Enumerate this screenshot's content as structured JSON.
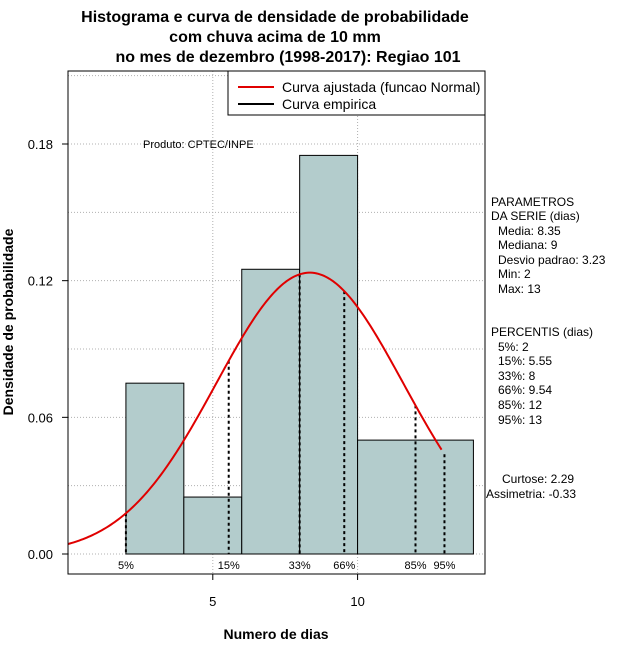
{
  "chart_data": {
    "type": "histogram",
    "title_lines": [
      "Histograma e curva de densidade de probabilidade",
      "com chuva acima de 10 mm",
      "no mes de dezembro (1998-2017): Regiao 101"
    ],
    "xlabel": "Numero de dias",
    "ylabel": "Densidade de probabilidade",
    "xlim": [
      0,
      14.4
    ],
    "ylim": [
      0,
      0.21
    ],
    "x_ticks": [
      5,
      10
    ],
    "y_ticks": [
      0.0,
      0.06,
      0.12,
      0.18
    ],
    "y_tick_labels": [
      "0.00",
      "0.06",
      "0.12",
      "0.18"
    ],
    "grid": true,
    "bins": [
      {
        "from": 2,
        "to": 4,
        "density": 0.075
      },
      {
        "from": 4,
        "to": 6,
        "density": 0.025
      },
      {
        "from": 6,
        "to": 8,
        "density": 0.125
      },
      {
        "from": 8,
        "to": 10,
        "density": 0.175
      },
      {
        "from": 10,
        "to": 14,
        "density": 0.05
      }
    ],
    "bar_color": "#b3cccc",
    "curve_color": "#e00000",
    "normal_fit": {
      "mean": 8.35,
      "sd": 3.23,
      "x_from": 0,
      "x_to": 12.9
    },
    "legend": {
      "position": "top-right",
      "items": [
        {
          "label": "Curva ajustada (funcao Normal)",
          "color": "#e00000"
        },
        {
          "label": "Curva empirica",
          "color": "#000000"
        }
      ]
    },
    "annotation": "Produto: CPTEC/INPE",
    "percentile_markers": [
      {
        "label": "5%",
        "x": 2
      },
      {
        "label": "15%",
        "x": 5.55
      },
      {
        "label": "33%",
        "x": 8
      },
      {
        "label": "66%",
        "x": 9.54
      },
      {
        "label": "85%",
        "x": 12
      },
      {
        "label": "95%",
        "x": 13
      }
    ],
    "parametros": {
      "header": [
        "PARAMETROS",
        "DA SERIE (dias)"
      ],
      "items": [
        "Media: 8.35",
        "Mediana: 9",
        "Desvio padrao: 3.23",
        "Min: 2",
        "Max: 13"
      ]
    },
    "percentis": {
      "header": "PERCENTIS (dias)",
      "items": [
        "5%: 2",
        "15%: 5.55",
        "33%: 8",
        "66%: 9.54",
        "85%: 12",
        "95%: 13"
      ]
    },
    "shape": {
      "curtose": "Curtose: 2.29",
      "assimetria": "Assimetria: -0.33"
    }
  }
}
